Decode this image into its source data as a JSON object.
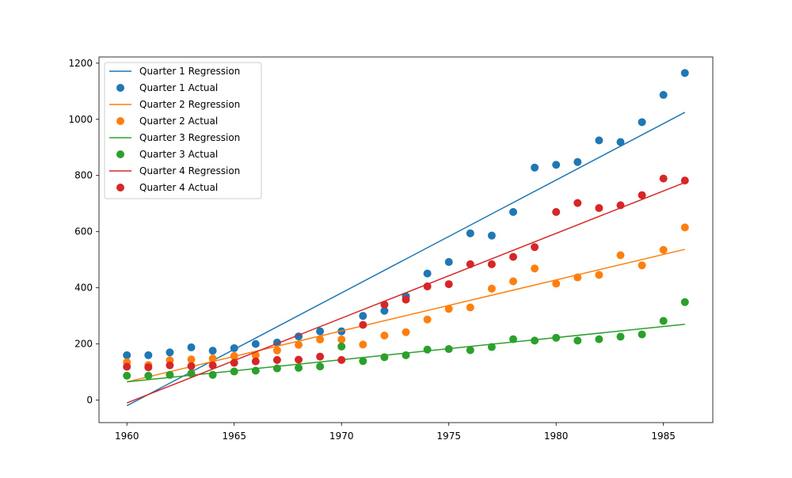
{
  "chart_data": {
    "type": "scatter",
    "title": "",
    "xlabel": "",
    "ylabel": "",
    "xlim": [
      1958.7,
      1987.3
    ],
    "ylim": [
      -80,
      1222
    ],
    "x_ticks": [
      1960,
      1965,
      1970,
      1975,
      1980,
      1985
    ],
    "y_ticks": [
      0,
      200,
      400,
      600,
      800,
      1000,
      1200
    ],
    "grid": false,
    "legend_position": "top-left",
    "x": [
      1960,
      1961,
      1962,
      1963,
      1964,
      1965,
      1966,
      1967,
      1968,
      1969,
      1970,
      1971,
      1972,
      1973,
      1974,
      1975,
      1976,
      1977,
      1978,
      1979,
      1980,
      1981,
      1982,
      1983,
      1984,
      1985,
      1986
    ],
    "series": [
      {
        "name": "Quarter 1",
        "color": "#1f77b4",
        "actual_label": "Quarter 1 Actual",
        "regression_label": "Quarter 1 Regression",
        "actual": [
          160,
          160,
          170,
          188,
          176,
          185,
          200,
          205,
          227,
          245,
          245,
          300,
          318,
          370,
          451,
          492,
          594,
          586,
          670,
          828,
          838,
          848,
          925,
          919,
          990,
          1087,
          1165
        ],
        "regression": [
          [
            1960,
            -20
          ],
          [
            1986,
            1025
          ]
        ]
      },
      {
        "name": "Quarter 2",
        "color": "#ff7f0e",
        "actual_label": "Quarter 2 Actual",
        "regression_label": "Quarter 2 Regression",
        "actual": [
          135,
          125,
          142,
          145,
          148,
          157,
          160,
          177,
          197,
          216,
          216,
          198,
          230,
          242,
          287,
          325,
          330,
          397,
          423,
          469,
          415,
          437,
          446,
          516,
          480,
          535,
          615
        ],
        "regression": [
          [
            1960,
            65
          ],
          [
            1986,
            537
          ]
        ]
      },
      {
        "name": "Quarter 3",
        "color": "#2ca02c",
        "actual_label": "Quarter 3 Actual",
        "regression_label": "Quarter 3 Regression",
        "actual": [
          87,
          87,
          90,
          95,
          90,
          102,
          105,
          113,
          115,
          120,
          191,
          139,
          153,
          160,
          180,
          182,
          178,
          189,
          217,
          212,
          222,
          212,
          217,
          226,
          234,
          282,
          349
        ],
        "regression": [
          [
            1960,
            65
          ],
          [
            1986,
            270
          ]
        ]
      },
      {
        "name": "Quarter 4",
        "color": "#d62728",
        "actual_label": "Quarter 4 Actual",
        "regression_label": "Quarter 4 Regression",
        "actual": [
          119,
          117,
          124,
          121,
          124,
          133,
          138,
          143,
          144,
          155,
          143,
          268,
          340,
          358,
          405,
          413,
          484,
          484,
          510,
          545,
          670,
          702,
          684,
          694,
          730,
          789,
          782
        ],
        "regression": [
          [
            1960,
            -10
          ],
          [
            1986,
            775
          ]
        ]
      }
    ]
  }
}
